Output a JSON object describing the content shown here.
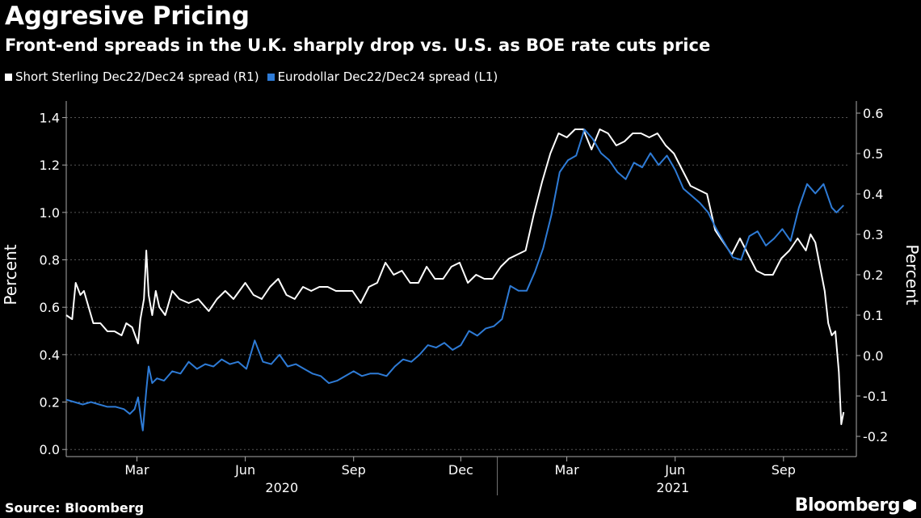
{
  "title": "Aggresive Pricing",
  "subtitle": "Front-end spreads in the U.K. sharply drop vs. U.S. as BOE rate cuts price",
  "source": "Source: Bloomberg",
  "brand": "Bloomberg",
  "colors": {
    "background": "#000000",
    "white_series": "#ffffff",
    "blue_series": "#2e7bd6"
  },
  "chart_data": {
    "type": "line",
    "legend_position": "top-left",
    "grid": true,
    "x_axis": {
      "month_ticks": [
        "Mar",
        "Jun",
        "Sep",
        "Dec",
        "Mar",
        "Jun",
        "Sep"
      ],
      "year_labels": [
        "2020",
        "2021"
      ]
    },
    "y_left": {
      "label": "Percent",
      "range": [
        -0.03,
        1.47
      ],
      "ticks": [
        "0.0",
        "0.2",
        "0.4",
        "0.6",
        "0.8",
        "1.0",
        "1.2",
        "1.4"
      ]
    },
    "y_right": {
      "label": "Percent",
      "range": [
        -0.25,
        0.63
      ],
      "ticks": [
        "-0.2",
        "-0.1",
        "0.0",
        "0.1",
        "0.2",
        "0.3",
        "0.4",
        "0.5",
        "0.6"
      ]
    },
    "series": [
      {
        "name": "Short Sterling Dec22/Dec24 spread (R1)",
        "axis": "right",
        "color": "#ffffff",
        "points": [
          [
            "2020-01-01",
            0.1
          ],
          [
            "2020-01-06",
            0.09
          ],
          [
            "2020-01-09",
            0.18
          ],
          [
            "2020-01-13",
            0.15
          ],
          [
            "2020-01-16",
            0.16
          ],
          [
            "2020-01-20",
            0.12
          ],
          [
            "2020-01-24",
            0.08
          ],
          [
            "2020-01-30",
            0.08
          ],
          [
            "2020-02-05",
            0.06
          ],
          [
            "2020-02-11",
            0.06
          ],
          [
            "2020-02-17",
            0.05
          ],
          [
            "2020-02-21",
            0.08
          ],
          [
            "2020-02-26",
            0.07
          ],
          [
            "2020-03-02",
            0.03
          ],
          [
            "2020-03-04",
            0.09
          ],
          [
            "2020-03-07",
            0.14
          ],
          [
            "2020-03-09",
            0.26
          ],
          [
            "2020-03-11",
            0.15
          ],
          [
            "2020-03-14",
            0.1
          ],
          [
            "2020-03-17",
            0.16
          ],
          [
            "2020-03-20",
            0.12
          ],
          [
            "2020-03-25",
            0.1
          ],
          [
            "2020-03-31",
            0.16
          ],
          [
            "2020-04-06",
            0.14
          ],
          [
            "2020-04-14",
            0.13
          ],
          [
            "2020-04-22",
            0.14
          ],
          [
            "2020-05-01",
            0.11
          ],
          [
            "2020-05-08",
            0.14
          ],
          [
            "2020-05-15",
            0.16
          ],
          [
            "2020-05-22",
            0.14
          ],
          [
            "2020-06-01",
            0.18
          ],
          [
            "2020-06-08",
            0.15
          ],
          [
            "2020-06-15",
            0.14
          ],
          [
            "2020-06-22",
            0.17
          ],
          [
            "2020-06-29",
            0.19
          ],
          [
            "2020-07-06",
            0.15
          ],
          [
            "2020-07-13",
            0.14
          ],
          [
            "2020-07-20",
            0.17
          ],
          [
            "2020-07-27",
            0.16
          ],
          [
            "2020-08-03",
            0.17
          ],
          [
            "2020-08-10",
            0.17
          ],
          [
            "2020-08-17",
            0.16
          ],
          [
            "2020-08-24",
            0.16
          ],
          [
            "2020-08-31",
            0.16
          ],
          [
            "2020-09-07",
            0.13
          ],
          [
            "2020-09-14",
            0.17
          ],
          [
            "2020-09-21",
            0.18
          ],
          [
            "2020-09-28",
            0.23
          ],
          [
            "2020-10-05",
            0.2
          ],
          [
            "2020-10-12",
            0.21
          ],
          [
            "2020-10-19",
            0.18
          ],
          [
            "2020-10-26",
            0.18
          ],
          [
            "2020-11-02",
            0.22
          ],
          [
            "2020-11-09",
            0.19
          ],
          [
            "2020-11-16",
            0.19
          ],
          [
            "2020-11-23",
            0.22
          ],
          [
            "2020-11-30",
            0.23
          ],
          [
            "2020-12-07",
            0.18
          ],
          [
            "2020-12-14",
            0.2
          ],
          [
            "2020-12-21",
            0.19
          ],
          [
            "2020-12-28",
            0.19
          ],
          [
            "2021-01-04",
            0.22
          ],
          [
            "2021-01-11",
            0.24
          ],
          [
            "2021-01-18",
            0.25
          ],
          [
            "2021-01-25",
            0.26
          ],
          [
            "2021-02-01",
            0.35
          ],
          [
            "2021-02-08",
            0.43
          ],
          [
            "2021-02-15",
            0.5
          ],
          [
            "2021-02-22",
            0.55
          ],
          [
            "2021-03-01",
            0.54
          ],
          [
            "2021-03-08",
            0.56
          ],
          [
            "2021-03-15",
            0.56
          ],
          [
            "2021-03-22",
            0.51
          ],
          [
            "2021-03-29",
            0.56
          ],
          [
            "2021-04-05",
            0.55
          ],
          [
            "2021-04-12",
            0.52
          ],
          [
            "2021-04-19",
            0.53
          ],
          [
            "2021-04-26",
            0.55
          ],
          [
            "2021-05-03",
            0.55
          ],
          [
            "2021-05-10",
            0.54
          ],
          [
            "2021-05-17",
            0.55
          ],
          [
            "2021-05-24",
            0.52
          ],
          [
            "2021-05-31",
            0.5
          ],
          [
            "2021-06-07",
            0.46
          ],
          [
            "2021-06-14",
            0.42
          ],
          [
            "2021-06-21",
            0.41
          ],
          [
            "2021-06-28",
            0.4
          ],
          [
            "2021-07-05",
            0.31
          ],
          [
            "2021-07-12",
            0.28
          ],
          [
            "2021-07-19",
            0.25
          ],
          [
            "2021-07-26",
            0.29
          ],
          [
            "2021-08-02",
            0.25
          ],
          [
            "2021-08-09",
            0.21
          ],
          [
            "2021-08-16",
            0.2
          ],
          [
            "2021-08-23",
            0.2
          ],
          [
            "2021-08-30",
            0.24
          ],
          [
            "2021-09-06",
            0.26
          ],
          [
            "2021-09-13",
            0.29
          ],
          [
            "2021-09-20",
            0.26
          ],
          [
            "2021-09-24",
            0.3
          ],
          [
            "2021-09-28",
            0.28
          ],
          [
            "2021-10-02",
            0.22
          ],
          [
            "2021-10-06",
            0.16
          ],
          [
            "2021-10-09",
            0.08
          ],
          [
            "2021-10-12",
            0.05
          ],
          [
            "2021-10-15",
            0.06
          ],
          [
            "2021-10-18",
            -0.04
          ],
          [
            "2021-10-20",
            -0.17
          ],
          [
            "2021-10-22",
            -0.14
          ]
        ]
      },
      {
        "name": "Eurodollar Dec22/Dec24 spread (L1)",
        "axis": "left",
        "color": "#2e7bd6",
        "points": [
          [
            "2020-01-01",
            0.21
          ],
          [
            "2020-01-08",
            0.2
          ],
          [
            "2020-01-15",
            0.19
          ],
          [
            "2020-01-22",
            0.2
          ],
          [
            "2020-01-29",
            0.19
          ],
          [
            "2020-02-05",
            0.18
          ],
          [
            "2020-02-12",
            0.18
          ],
          [
            "2020-02-19",
            0.17
          ],
          [
            "2020-02-24",
            0.15
          ],
          [
            "2020-02-28",
            0.17
          ],
          [
            "2020-03-02",
            0.22
          ],
          [
            "2020-03-05",
            0.11
          ],
          [
            "2020-03-06",
            0.08
          ],
          [
            "2020-03-09",
            0.25
          ],
          [
            "2020-03-11",
            0.35
          ],
          [
            "2020-03-14",
            0.28
          ],
          [
            "2020-03-18",
            0.3
          ],
          [
            "2020-03-24",
            0.29
          ],
          [
            "2020-03-31",
            0.33
          ],
          [
            "2020-04-07",
            0.32
          ],
          [
            "2020-04-14",
            0.37
          ],
          [
            "2020-04-21",
            0.34
          ],
          [
            "2020-04-28",
            0.36
          ],
          [
            "2020-05-05",
            0.35
          ],
          [
            "2020-05-12",
            0.38
          ],
          [
            "2020-05-19",
            0.36
          ],
          [
            "2020-05-26",
            0.37
          ],
          [
            "2020-06-02",
            0.34
          ],
          [
            "2020-06-09",
            0.46
          ],
          [
            "2020-06-16",
            0.37
          ],
          [
            "2020-06-23",
            0.36
          ],
          [
            "2020-06-30",
            0.4
          ],
          [
            "2020-07-07",
            0.35
          ],
          [
            "2020-07-14",
            0.36
          ],
          [
            "2020-07-21",
            0.34
          ],
          [
            "2020-07-28",
            0.32
          ],
          [
            "2020-08-04",
            0.31
          ],
          [
            "2020-08-11",
            0.28
          ],
          [
            "2020-08-18",
            0.29
          ],
          [
            "2020-08-25",
            0.31
          ],
          [
            "2020-09-01",
            0.33
          ],
          [
            "2020-09-08",
            0.31
          ],
          [
            "2020-09-15",
            0.32
          ],
          [
            "2020-09-22",
            0.32
          ],
          [
            "2020-09-29",
            0.31
          ],
          [
            "2020-10-06",
            0.35
          ],
          [
            "2020-10-13",
            0.38
          ],
          [
            "2020-10-20",
            0.37
          ],
          [
            "2020-10-27",
            0.4
          ],
          [
            "2020-11-03",
            0.44
          ],
          [
            "2020-11-10",
            0.43
          ],
          [
            "2020-11-17",
            0.45
          ],
          [
            "2020-11-24",
            0.42
          ],
          [
            "2020-12-01",
            0.44
          ],
          [
            "2020-12-08",
            0.5
          ],
          [
            "2020-12-15",
            0.48
          ],
          [
            "2020-12-22",
            0.51
          ],
          [
            "2020-12-29",
            0.52
          ],
          [
            "2021-01-05",
            0.55
          ],
          [
            "2021-01-12",
            0.69
          ],
          [
            "2021-01-19",
            0.67
          ],
          [
            "2021-01-26",
            0.67
          ],
          [
            "2021-02-02",
            0.75
          ],
          [
            "2021-02-09",
            0.85
          ],
          [
            "2021-02-16",
            0.99
          ],
          [
            "2021-02-23",
            1.17
          ],
          [
            "2021-03-02",
            1.22
          ],
          [
            "2021-03-09",
            1.24
          ],
          [
            "2021-03-16",
            1.35
          ],
          [
            "2021-03-23",
            1.31
          ],
          [
            "2021-03-30",
            1.25
          ],
          [
            "2021-04-06",
            1.22
          ],
          [
            "2021-04-13",
            1.17
          ],
          [
            "2021-04-20",
            1.14
          ],
          [
            "2021-04-27",
            1.21
          ],
          [
            "2021-05-04",
            1.19
          ],
          [
            "2021-05-11",
            1.25
          ],
          [
            "2021-05-18",
            1.2
          ],
          [
            "2021-05-25",
            1.24
          ],
          [
            "2021-06-01",
            1.18
          ],
          [
            "2021-06-08",
            1.1
          ],
          [
            "2021-06-15",
            1.07
          ],
          [
            "2021-06-22",
            1.04
          ],
          [
            "2021-06-29",
            1.0
          ],
          [
            "2021-07-06",
            0.93
          ],
          [
            "2021-07-13",
            0.87
          ],
          [
            "2021-07-20",
            0.81
          ],
          [
            "2021-07-27",
            0.8
          ],
          [
            "2021-08-03",
            0.9
          ],
          [
            "2021-08-10",
            0.92
          ],
          [
            "2021-08-17",
            0.86
          ],
          [
            "2021-08-24",
            0.89
          ],
          [
            "2021-08-31",
            0.93
          ],
          [
            "2021-09-07",
            0.88
          ],
          [
            "2021-09-14",
            1.02
          ],
          [
            "2021-09-21",
            1.12
          ],
          [
            "2021-09-28",
            1.08
          ],
          [
            "2021-10-05",
            1.12
          ],
          [
            "2021-10-12",
            1.02
          ],
          [
            "2021-10-16",
            1.0
          ],
          [
            "2021-10-22",
            1.03
          ]
        ]
      }
    ]
  }
}
